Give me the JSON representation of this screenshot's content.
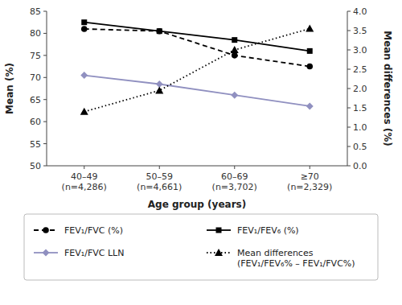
{
  "chart_data": {
    "type": "line",
    "categories": [
      "40–49\n(n=4,286)",
      "50–59\n(n=4,661)",
      "60–69\n(n=3,702)",
      "≥70\n(n=2,329)"
    ],
    "series": [
      {
        "name": "FEV₁/FVC (%)",
        "color": "#000000",
        "marker": "circle",
        "line_style": "dashed",
        "values": [
          81.0,
          80.5,
          75.0,
          72.5
        ]
      },
      {
        "name": "FEV₁/FEV₆ (%)",
        "color": "#000000",
        "marker": "square",
        "line_style": "solid",
        "values": [
          82.5,
          80.5,
          78.5,
          76.0
        ]
      },
      {
        "name": "FEV₁/FVC LLN",
        "color": "#9090c0",
        "marker": "diamond",
        "line_style": "solid",
        "values": [
          70.5,
          68.5,
          66.0,
          63.5
        ]
      },
      {
        "name": "Mean differences\n(FEV₁/FEV₆% – FEV₁/FVC%)",
        "color": "#000000",
        "marker": "triangle",
        "line_style": "dotted",
        "axis": "y2",
        "values": [
          1.4,
          1.95,
          3.0,
          3.55
        ]
      }
    ],
    "xlabel": "Age group (years)",
    "ylabel": "Mean (%)",
    "y2label": "Mean differences (%)",
    "ylim": [
      50,
      85
    ],
    "yticks": [
      50,
      55,
      60,
      65,
      70,
      75,
      80,
      85
    ],
    "y2lim": [
      0.0,
      4.0
    ],
    "y2ticks": [
      {
        "value": 0.0,
        "label": "0.0"
      },
      0.5,
      {
        "value": 1.0,
        "label": "1.0"
      },
      1.5,
      {
        "value": 2.0,
        "label": "2.0"
      },
      2.5,
      {
        "value": 3.0,
        "label": "3.0"
      },
      3.5,
      {
        "value": 4.0,
        "label": "4.0"
      }
    ],
    "grid": false,
    "legend": "bottom"
  }
}
